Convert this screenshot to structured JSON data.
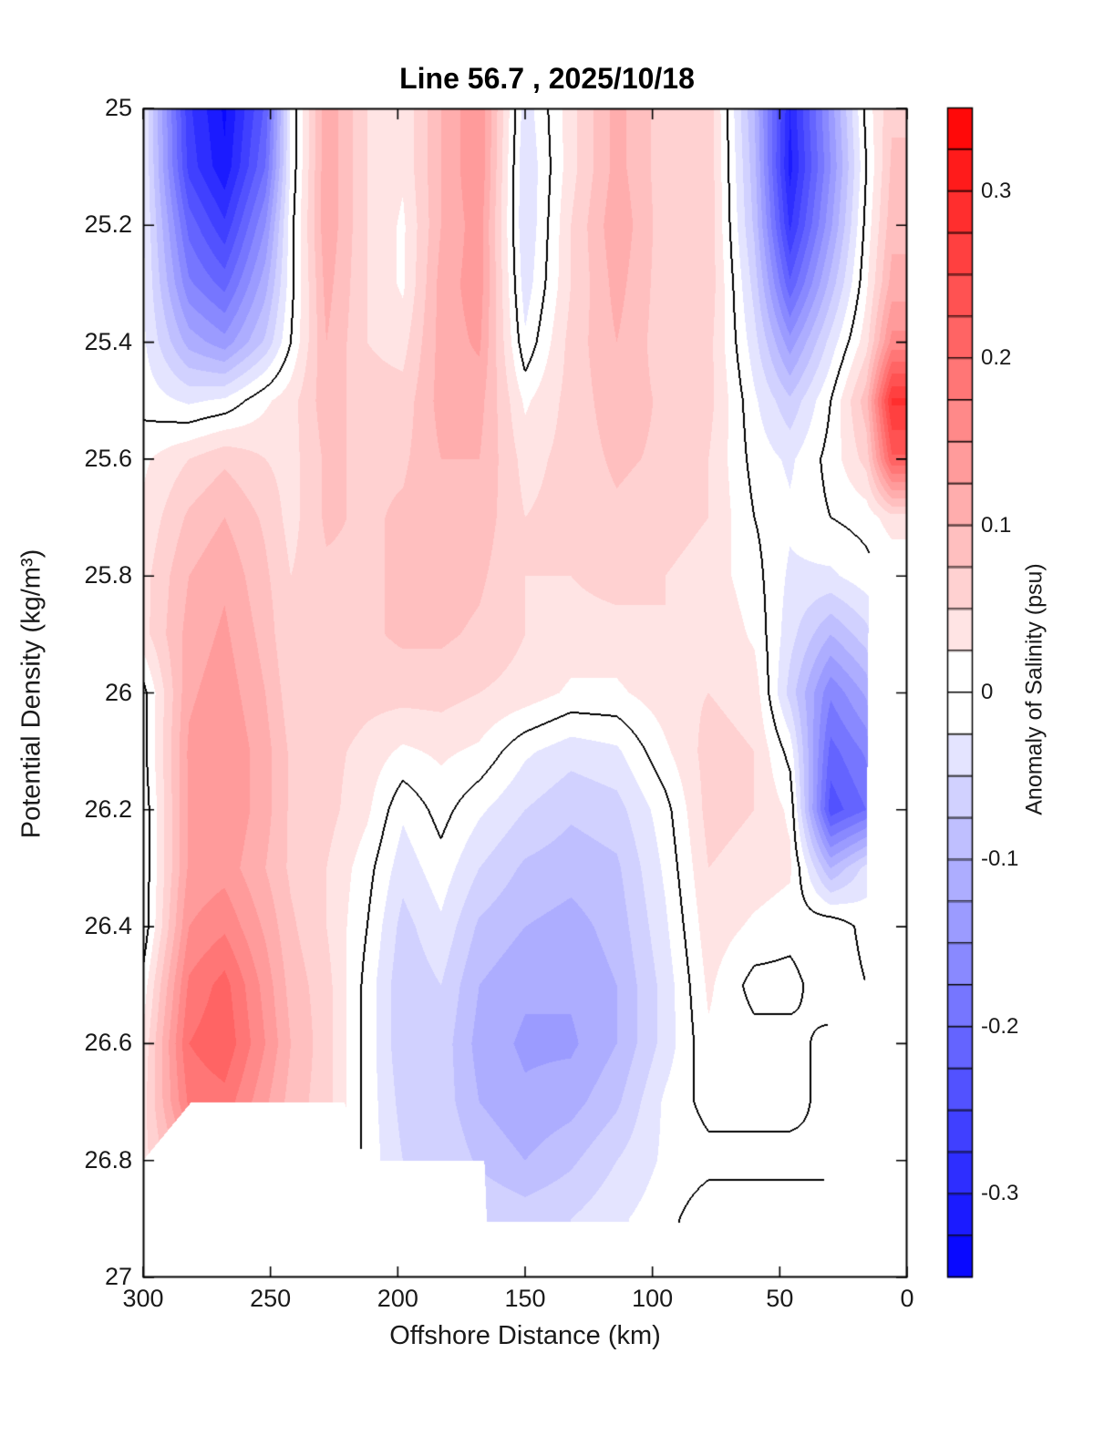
{
  "title": "Line 56.7 , 2025/10/18",
  "axes": {
    "x": {
      "label": "Offshore Distance (km)",
      "range": [
        300,
        0
      ],
      "reversed": true,
      "tick_values": [
        300,
        250,
        200,
        150,
        100,
        50,
        0
      ],
      "tick_labels": [
        "300",
        "250",
        "200",
        "150",
        "100",
        "50",
        "0"
      ]
    },
    "y": {
      "label": "Potential Density (kg/m³)",
      "range": [
        25,
        27
      ],
      "tick_values": [
        25,
        25.2,
        25.4,
        25.6,
        25.8,
        26,
        26.2,
        26.4,
        26.6,
        26.8,
        27
      ],
      "tick_labels": [
        "25",
        "25.2",
        "25.4",
        "25.6",
        "25.8",
        "26",
        "26.2",
        "26.4",
        "26.6",
        "26.8",
        "27"
      ]
    }
  },
  "colorbar": {
    "label": "Anomaly of Salinity (psu)",
    "range": [
      -0.35,
      0.35
    ],
    "segment_step": 0.025,
    "tick_values": [
      0.3,
      0.2,
      0.1,
      0,
      -0.1,
      -0.2,
      -0.3
    ],
    "tick_labels": [
      "0.3",
      "0.2",
      "0.1",
      "0",
      "-0.1",
      "-0.2",
      "-0.3"
    ],
    "colormap": "blue-white-red"
  },
  "colors": {
    "positive_max": "#ff0000",
    "negative_max": "#0000ff",
    "zero_band": "#ffffff",
    "contour_line": "#000000",
    "text": "#1a1a1a",
    "background": "#ffffff"
  },
  "chart_data": {
    "type": "heatmap",
    "title": "Line 56.7 , 2025/10/18",
    "xlabel": "Offshore Distance (km)",
    "ylabel": "Potential Density (kg/m³)",
    "value_label": "Anomaly of Salinity (psu)",
    "x_range_km": [
      300,
      0
    ],
    "y_range_sigma": [
      25,
      27
    ],
    "level_step_psu": 0.025,
    "zero_contour_drawn": true,
    "x_km": [
      300,
      282,
      268,
      252,
      242,
      228,
      212,
      198,
      183,
      168,
      150,
      132,
      114,
      95,
      78,
      60,
      46,
      30,
      16,
      6
    ],
    "sigma": [
      25.0,
      25.1,
      25.2,
      25.3,
      25.4,
      25.5,
      25.6,
      25.7,
      25.8,
      25.9,
      26.0,
      26.1,
      26.2,
      26.3,
      26.4,
      26.5,
      26.6,
      26.7,
      26.8,
      26.9,
      27.0
    ],
    "values_psu": [
      [
        -0.02,
        -0.27,
        -0.33,
        -0.22,
        -0.02,
        0.12,
        0.05,
        0.03,
        0.1,
        0.15,
        -0.04,
        0.04,
        0.11,
        0.06,
        0.07,
        -0.1,
        -0.3,
        -0.14,
        0.01,
        0.07
      ],
      [
        -0.02,
        -0.26,
        -0.32,
        -0.2,
        -0.02,
        0.12,
        0.05,
        0.03,
        0.1,
        0.15,
        -0.05,
        0.04,
        0.11,
        0.06,
        0.07,
        -0.09,
        -0.31,
        -0.15,
        0.0,
        0.08
      ],
      [
        -0.02,
        -0.21,
        -0.27,
        -0.15,
        -0.01,
        0.12,
        0.05,
        0.02,
        0.1,
        0.14,
        -0.05,
        0.05,
        0.12,
        0.06,
        0.07,
        -0.08,
        -0.28,
        -0.13,
        0.01,
        0.09
      ],
      [
        -0.02,
        -0.17,
        -0.21,
        -0.11,
        -0.01,
        0.11,
        0.05,
        0.02,
        0.11,
        0.14,
        -0.04,
        0.05,
        0.11,
        0.06,
        0.07,
        -0.06,
        -0.22,
        -0.09,
        0.02,
        0.11
      ],
      [
        -0.02,
        -0.11,
        -0.14,
        -0.07,
        0.0,
        0.1,
        0.05,
        0.04,
        0.11,
        0.13,
        -0.02,
        0.06,
        0.1,
        0.06,
        0.06,
        -0.04,
        -0.14,
        -0.04,
        0.04,
        0.16
      ],
      [
        -0.01,
        -0.03,
        -0.02,
        0.02,
        0.04,
        0.09,
        0.06,
        0.06,
        0.11,
        0.11,
        0.02,
        0.06,
        0.09,
        0.07,
        0.06,
        -0.02,
        -0.07,
        0.0,
        0.09,
        0.28
      ],
      [
        0.02,
        0.05,
        0.07,
        0.05,
        0.04,
        0.08,
        0.07,
        0.07,
        0.1,
        0.1,
        0.04,
        0.06,
        0.08,
        0.07,
        0.05,
        -0.01,
        -0.03,
        0.01,
        0.06,
        0.22
      ],
      [
        0.03,
        0.08,
        0.1,
        0.07,
        0.04,
        0.08,
        0.07,
        0.08,
        0.1,
        0.09,
        0.05,
        0.06,
        0.07,
        0.06,
        0.05,
        0.0,
        -0.02,
        0.0,
        0.01,
        0.04
      ],
      [
        0.04,
        0.1,
        0.12,
        0.08,
        0.05,
        0.07,
        0.07,
        0.08,
        0.09,
        0.08,
        0.05,
        0.05,
        0.06,
        0.05,
        0.04,
        0.01,
        -0.03,
        -0.03,
        -0.01,
        0.0
      ],
      [
        0.04,
        0.11,
        0.13,
        0.09,
        0.05,
        0.07,
        0.07,
        0.08,
        0.08,
        0.07,
        0.05,
        0.04,
        0.04,
        0.05,
        0.05,
        0.02,
        -0.04,
        -0.1,
        -0.06,
        0.0
      ],
      [
        -0.01,
        0.12,
        0.14,
        0.1,
        0.06,
        0.07,
        0.06,
        0.06,
        0.06,
        0.05,
        0.04,
        0.02,
        0.02,
        0.04,
        0.05,
        0.04,
        -0.06,
        -0.17,
        -0.12,
        0.0
      ],
      [
        -0.01,
        0.13,
        0.15,
        0.11,
        0.07,
        0.06,
        0.04,
        0.02,
        0.03,
        0.02,
        -0.02,
        -0.04,
        -0.03,
        0.02,
        0.06,
        0.05,
        -0.01,
        -0.21,
        -0.17,
        0.0
      ],
      [
        -0.02,
        0.13,
        0.15,
        0.11,
        0.07,
        0.06,
        0.03,
        -0.02,
        0.01,
        -0.02,
        -0.05,
        -0.07,
        -0.06,
        -0.01,
        0.06,
        0.05,
        0.02,
        -0.24,
        -0.2,
        0.0
      ],
      [
        -0.02,
        0.13,
        0.14,
        0.1,
        0.07,
        0.05,
        0.01,
        -0.04,
        -0.01,
        -0.05,
        -0.08,
        -0.09,
        -0.08,
        -0.02,
        0.05,
        0.04,
        0.03,
        -0.1,
        -0.04,
        0.0
      ],
      [
        -0.02,
        0.15,
        0.17,
        0.12,
        0.08,
        0.05,
        0.0,
        -0.06,
        -0.03,
        -0.08,
        -0.1,
        -0.11,
        -0.09,
        -0.03,
        0.04,
        0.02,
        0.01,
        0.02,
        -0.01,
        0.0
      ],
      [
        0.01,
        0.18,
        0.21,
        0.14,
        0.09,
        0.06,
        -0.01,
        -0.07,
        -0.05,
        -0.1,
        -0.12,
        -0.12,
        -0.1,
        -0.04,
        0.03,
        -0.01,
        -0.01,
        0.02,
        0.0,
        0.0
      ],
      [
        0.03,
        0.2,
        0.22,
        0.15,
        0.1,
        0.06,
        -0.01,
        -0.07,
        -0.06,
        -0.11,
        -0.13,
        -0.13,
        -0.1,
        -0.04,
        0.02,
        0.01,
        0.01,
        -0.01,
        0.0,
        0.0
      ],
      [
        0.04,
        0.18,
        0.19,
        0.13,
        0.09,
        0.06,
        -0.01,
        -0.06,
        -0.06,
        -0.1,
        -0.12,
        -0.11,
        -0.08,
        -0.02,
        0.01,
        0.01,
        0.01,
        -0.01,
        0.0,
        0.0
      ],
      [
        0.04,
        0.12,
        0.13,
        0.1,
        0.07,
        0.05,
        -0.01,
        -0.05,
        -0.05,
        -0.08,
        -0.1,
        -0.08,
        -0.05,
        -0.02,
        -0.01,
        -0.01,
        -0.01,
        0.0,
        0.0,
        0.0
      ],
      [
        0.03,
        0.08,
        0.09,
        0.07,
        0.05,
        0.03,
        0.0,
        -0.03,
        -0.03,
        -0.05,
        -0.06,
        -0.05,
        -0.03,
        -0.01,
        0.02,
        0.02,
        0.02,
        0.0,
        0.0,
        0.0
      ],
      [
        0.03,
        0.08,
        0.09,
        0.07,
        0.05,
        0.03,
        0.0,
        -0.03,
        -0.03,
        -0.05,
        -0.06,
        -0.05,
        -0.03,
        -0.01,
        0.02,
        0.02,
        0.02,
        0.0,
        0.0,
        0.0
      ]
    ],
    "no_data_boundary": {
      "comment": "below these sigma values (per km breakpoint) the section is blank/white",
      "km": [
        300,
        281,
        221,
        213,
        166,
        165,
        96,
        60,
        33,
        31,
        17,
        16,
        15,
        0
      ],
      "max_sigma": [
        26.8,
        26.7,
        26.7,
        26.8,
        26.8,
        26.905,
        26.905,
        26.915,
        26.9,
        26.55,
        26.55,
        26.4,
        25.76,
        25.76
      ]
    }
  }
}
